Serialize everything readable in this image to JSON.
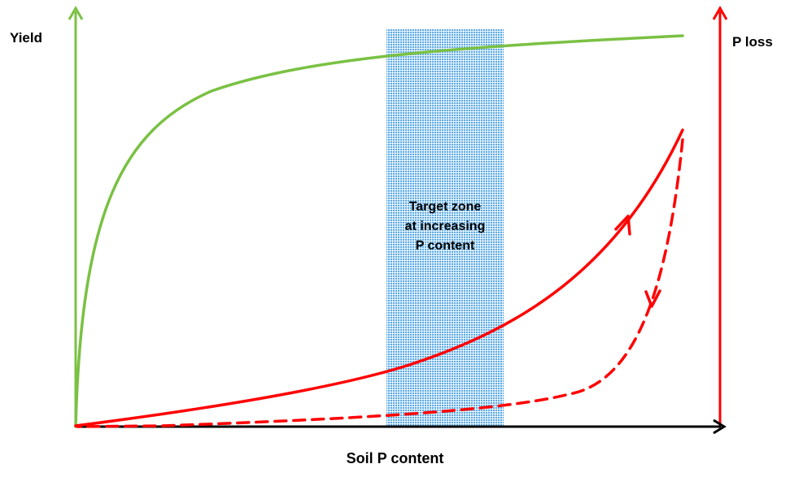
{
  "left_axis": {
    "label": "Yield",
    "color": "#7ac143"
  },
  "right_axis": {
    "label": "P loss",
    "color": "#ff0000"
  },
  "x_axis": {
    "label": "Soil P content",
    "color": "#000000"
  },
  "target_zone": {
    "lines": [
      "Target zone",
      "at increasing",
      "P content"
    ],
    "fill_color": "#6fb7ea"
  },
  "curves": [
    {
      "id": "yield",
      "color": "#7ac143",
      "style": "solid"
    },
    {
      "id": "p-loss-increasing",
      "color": "#ff0000",
      "style": "solid",
      "arrow": "up"
    },
    {
      "id": "p-loss-decreasing",
      "color": "#ff0000",
      "style": "dashed",
      "arrow": "down"
    }
  ]
}
